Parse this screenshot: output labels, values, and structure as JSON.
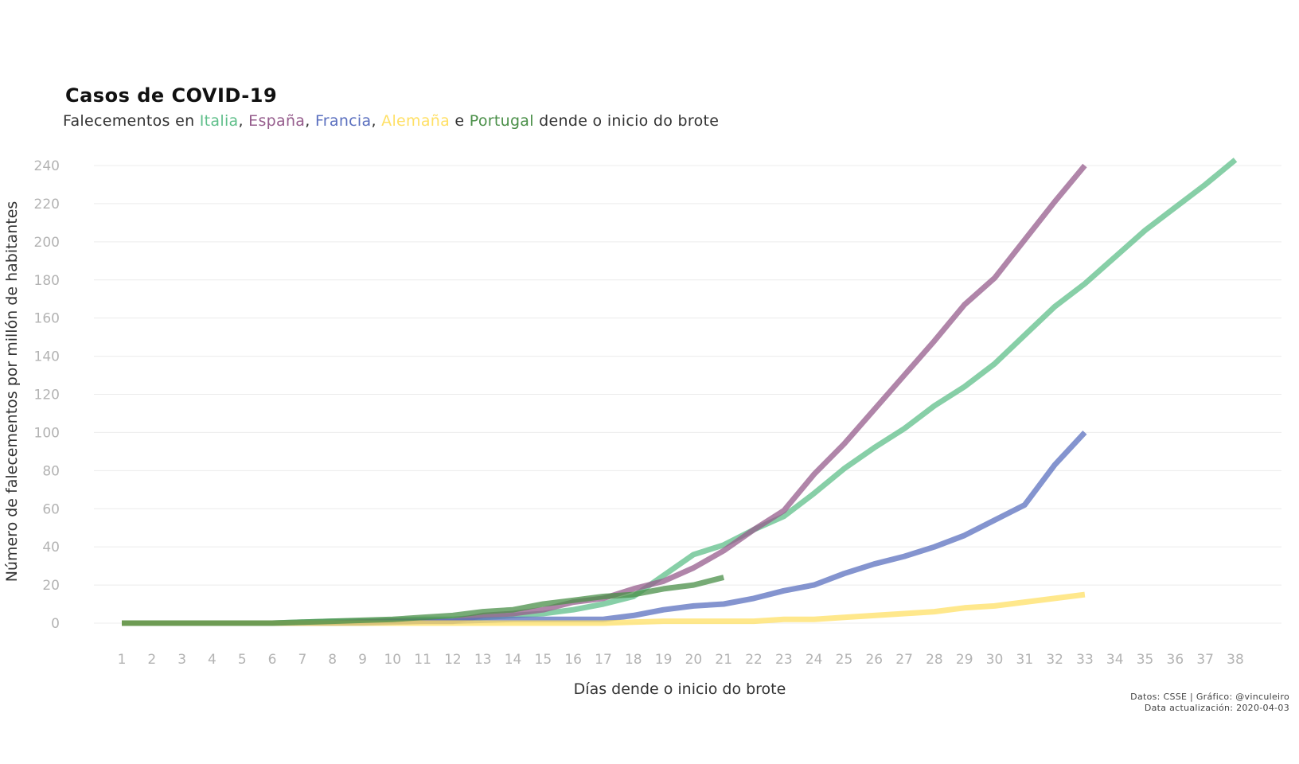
{
  "chart_data": {
    "type": "line",
    "title": "Casos de COVID-19",
    "subtitle_parts": {
      "prefix": "Falecementos en",
      "s1": "Italia",
      "sep1": ",",
      "s2": "España",
      "sep2": ",",
      "s3": "Francia",
      "sep3": ",",
      "s4": "Alemaña",
      "conj": "e",
      "s5": "Portugal",
      "suffix": "dende o inicio do brote"
    },
    "xlabel": "Días dende o inicio do brote",
    "ylabel": "Número de falecementos por millón de habitantes",
    "xlim": [
      1,
      38
    ],
    "ylim": [
      0,
      240
    ],
    "yticks": [
      0,
      20,
      40,
      60,
      80,
      100,
      120,
      140,
      160,
      180,
      200,
      220,
      240
    ],
    "xticks": [
      1,
      2,
      3,
      4,
      5,
      6,
      7,
      8,
      9,
      10,
      11,
      12,
      13,
      14,
      15,
      16,
      17,
      18,
      19,
      20,
      21,
      22,
      23,
      24,
      25,
      26,
      27,
      28,
      29,
      30,
      31,
      32,
      33,
      34,
      35,
      36,
      37,
      38
    ],
    "grid": "horizontal",
    "legend": "none (colored words in subtitle)",
    "series": [
      {
        "name": "Italia",
        "color": "#5fbf8a",
        "x": [
          1,
          2,
          3,
          4,
          5,
          6,
          7,
          8,
          9,
          10,
          11,
          12,
          13,
          14,
          15,
          16,
          17,
          18,
          19,
          20,
          21,
          22,
          23,
          24,
          25,
          26,
          27,
          28,
          29,
          30,
          31,
          32,
          33,
          34,
          35,
          36,
          37,
          38
        ],
        "values": [
          0,
          0,
          0,
          0,
          0,
          0,
          0.5,
          1,
          1,
          1.5,
          2,
          2,
          3,
          4,
          5,
          7,
          10,
          14,
          25,
          36,
          41,
          49,
          56,
          68,
          81,
          92,
          102,
          114,
          124,
          136,
          151,
          166,
          178,
          192,
          206,
          218,
          230,
          243
        ]
      },
      {
        "name": "España",
        "color": "#955c8c",
        "x": [
          1,
          2,
          3,
          4,
          5,
          6,
          7,
          8,
          9,
          10,
          11,
          12,
          13,
          14,
          15,
          16,
          17,
          18,
          19,
          20,
          21,
          22,
          23,
          24,
          25,
          26,
          27,
          28,
          29,
          30,
          31,
          32,
          33
        ],
        "values": [
          0,
          0,
          0,
          0,
          0,
          0,
          0,
          0,
          0.5,
          1,
          1,
          1,
          4,
          5,
          7,
          11,
          13,
          18,
          22,
          29,
          38,
          49,
          59,
          78,
          94,
          112,
          130,
          148,
          167,
          181,
          201,
          221,
          240
        ]
      },
      {
        "name": "Francia",
        "color": "#5b70bf",
        "x": [
          1,
          2,
          3,
          4,
          5,
          6,
          7,
          8,
          9,
          10,
          11,
          12,
          13,
          14,
          15,
          16,
          17,
          18,
          19,
          20,
          21,
          22,
          23,
          24,
          25,
          26,
          27,
          28,
          29,
          30,
          31,
          32,
          33
        ],
        "values": [
          0,
          0,
          0,
          0,
          0,
          0,
          0,
          0,
          0,
          0.5,
          1,
          1,
          1.5,
          2,
          2,
          2,
          2,
          4,
          7,
          9,
          10,
          13,
          17,
          20,
          26,
          31,
          35,
          40,
          46,
          54,
          62,
          83,
          100
        ]
      },
      {
        "name": "Alemaña",
        "color": "#ffe066",
        "x": [
          1,
          2,
          3,
          4,
          5,
          6,
          7,
          8,
          9,
          10,
          11,
          12,
          13,
          14,
          15,
          16,
          17,
          18,
          19,
          20,
          21,
          22,
          23,
          24,
          25,
          26,
          27,
          28,
          29,
          30,
          31,
          32,
          33
        ],
        "values": [
          0,
          0,
          0,
          0,
          0,
          0,
          0,
          0,
          0,
          0,
          0,
          0,
          0,
          0,
          0,
          0,
          0,
          0.5,
          1,
          1,
          1,
          1,
          2,
          2,
          3,
          4,
          5,
          6,
          8,
          9,
          11,
          13,
          15
        ]
      },
      {
        "name": "Portugal",
        "color": "#4a8f48",
        "x": [
          1,
          2,
          3,
          4,
          5,
          6,
          7,
          8,
          9,
          10,
          11,
          12,
          13,
          14,
          15,
          16,
          17,
          18,
          19,
          20,
          21
        ],
        "values": [
          0,
          0,
          0,
          0,
          0,
          0,
          0.5,
          1,
          1.5,
          2,
          3,
          4,
          6,
          7,
          10,
          12,
          14,
          15,
          18,
          20,
          24
        ]
      }
    ],
    "caption": {
      "line1": "Datos: CSSE | Gráfico: @vinculeiro",
      "line2": "Data actualización: 2020-04-03"
    }
  }
}
